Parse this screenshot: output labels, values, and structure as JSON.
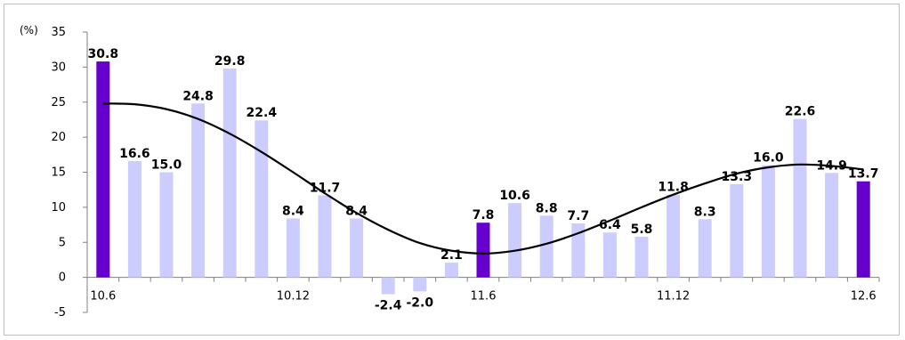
{
  "chart_data": {
    "type": "bar",
    "unit_label": "(%)",
    "ylim": [
      -5,
      35
    ],
    "yticks": [
      -5,
      0,
      5,
      10,
      15,
      20,
      25,
      30,
      35
    ],
    "x_tick_labels": [
      {
        "index": 0,
        "label": "10.6"
      },
      {
        "index": 6,
        "label": "10.12"
      },
      {
        "index": 12,
        "label": "11.6"
      },
      {
        "index": 18,
        "label": "11.12"
      },
      {
        "index": 24,
        "label": "12.6"
      }
    ],
    "series": [
      {
        "values": [
          30.8,
          16.6,
          15.0,
          24.8,
          29.8,
          22.4,
          8.4,
          11.7,
          8.4,
          -2.4,
          -2.0,
          2.1,
          7.8,
          10.6,
          8.8,
          7.7,
          6.4,
          5.8,
          11.8,
          8.3,
          13.3,
          16.0,
          22.6,
          14.9,
          13.7
        ],
        "labels": [
          "30.8",
          "16.6",
          "15.0",
          "24.8",
          "29.8",
          "22.4",
          "8.4",
          "11.7",
          "8.4",
          "-2.4",
          "-2.0",
          "2.1",
          "7.8",
          "10.6",
          "8.8",
          "7.7",
          "6.4",
          "5.8",
          "11.8",
          "8.3",
          "13.3",
          "16.0",
          "22.6",
          "14.9",
          "13.7"
        ],
        "highlight_indices": [
          0,
          12,
          24
        ]
      }
    ],
    "trend_line": [
      24.8,
      24.7,
      24.0,
      22.6,
      20.5,
      17.9,
      15.0,
      12.0,
      9.2,
      6.8,
      4.9,
      3.8,
      3.4,
      3.8,
      4.8,
      6.3,
      8.1,
      10.0,
      11.8,
      13.4,
      14.8,
      15.7,
      16.1,
      15.9,
      15.4
    ],
    "colors": {
      "bar": "#ccccff",
      "highlight": "#6600cc",
      "trend": "#000000"
    },
    "grid": false
  }
}
